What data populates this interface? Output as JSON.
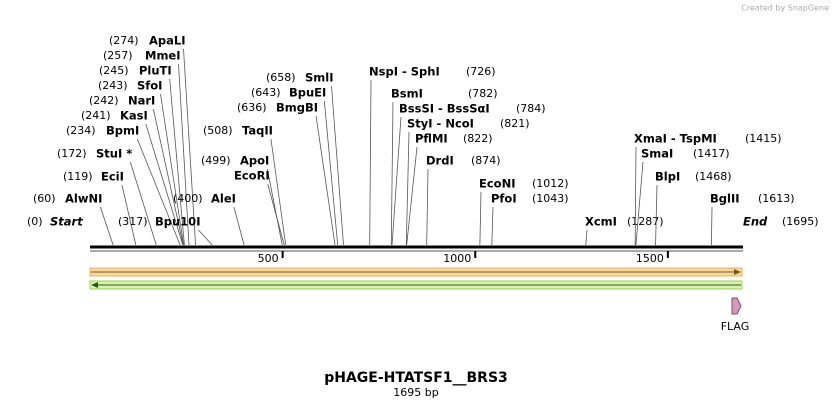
{
  "header": {
    "credit": "Created by SnapGene"
  },
  "map": {
    "length": 1695,
    "ticks": [
      500,
      1000,
      1500
    ],
    "sites": [
      {
        "name": "Start",
        "position": {
          "value": 0,
          "label": "(0)"
        }
      },
      {
        "name": "AlwNI",
        "position": {
          "value": 60,
          "label": "(60)"
        }
      },
      {
        "name": "EciI",
        "position": {
          "value": 119,
          "label": "(119)"
        }
      },
      {
        "name": "StuI *",
        "position": {
          "value": 172,
          "label": "(172)"
        }
      },
      {
        "name": "BpmI",
        "position": {
          "value": 234,
          "label": "(234)"
        }
      },
      {
        "name": "KasI",
        "position": {
          "value": 241,
          "label": "(241)"
        }
      },
      {
        "name": "NarI",
        "position": {
          "value": 242,
          "label": "(242)"
        }
      },
      {
        "name": "SfoI",
        "position": {
          "value": 243,
          "label": "(243)"
        }
      },
      {
        "name": "PluTI",
        "position": {
          "value": 245,
          "label": "(245)"
        }
      },
      {
        "name": "MmeI",
        "position": {
          "value": 257,
          "label": "(257)"
        }
      },
      {
        "name": "ApaLI",
        "position": {
          "value": 274,
          "label": "(274)"
        }
      },
      {
        "name": "Bpu10I",
        "position": {
          "value": 317,
          "label": "(317)"
        }
      },
      {
        "name": "AleI",
        "position": {
          "value": 400,
          "label": "(400)"
        }
      },
      {
        "name": "ApoI",
        "position": {
          "value": 499,
          "label": "(499)"
        }
      },
      {
        "name": "EcoRI"
      },
      {
        "name": "TaqII",
        "position": {
          "value": 508,
          "label": "(508)"
        }
      },
      {
        "name": "BmgBI",
        "position": {
          "value": 636,
          "label": "(636)"
        }
      },
      {
        "name": "BpuEI",
        "position": {
          "value": 643,
          "label": "(643)"
        }
      },
      {
        "name": "SmlI",
        "position": {
          "value": 658,
          "label": "(658)"
        }
      },
      {
        "name": "NspI  -  SphI",
        "position": {
          "value": 726,
          "label": "(726)"
        }
      },
      {
        "name": "BsmI",
        "position": {
          "value": 782,
          "label": "(782)"
        }
      },
      {
        "name": "BssSI  -  BssSαI",
        "position": {
          "value": 784,
          "label": "(784)"
        }
      },
      {
        "name": "StyI  -  NcoI",
        "position": {
          "value": 821,
          "label": "(821)"
        }
      },
      {
        "name": "PflMI",
        "position": {
          "value": 822,
          "label": "(822)"
        }
      },
      {
        "name": "DrdI",
        "position": {
          "value": 874,
          "label": "(874)"
        }
      },
      {
        "name": "EcoNI",
        "position": {
          "value": 1012,
          "label": "(1012)"
        }
      },
      {
        "name": "PfoI",
        "position": {
          "value": 1043,
          "label": "(1043)"
        }
      },
      {
        "name": "XcmI",
        "position": {
          "value": 1287,
          "label": "(1287)"
        }
      },
      {
        "name": "XmaI  -  TspMI",
        "position": {
          "value": 1415,
          "label": "(1415)"
        }
      },
      {
        "name": "SmaI",
        "position": {
          "value": 1417,
          "label": "(1417)"
        }
      },
      {
        "name": "BlpI",
        "position": {
          "value": 1468,
          "label": "(1468)"
        }
      },
      {
        "name": "BglII",
        "position": {
          "value": 1613,
          "label": "(1613)"
        }
      },
      {
        "name": "End",
        "position": {
          "value": 1695,
          "label": "(1695)"
        }
      }
    ],
    "features": [
      {
        "name": "FLAG"
      }
    ],
    "title": "pHAGE-HTATSF1__BRS3",
    "subtitle": "1695 bp"
  }
}
